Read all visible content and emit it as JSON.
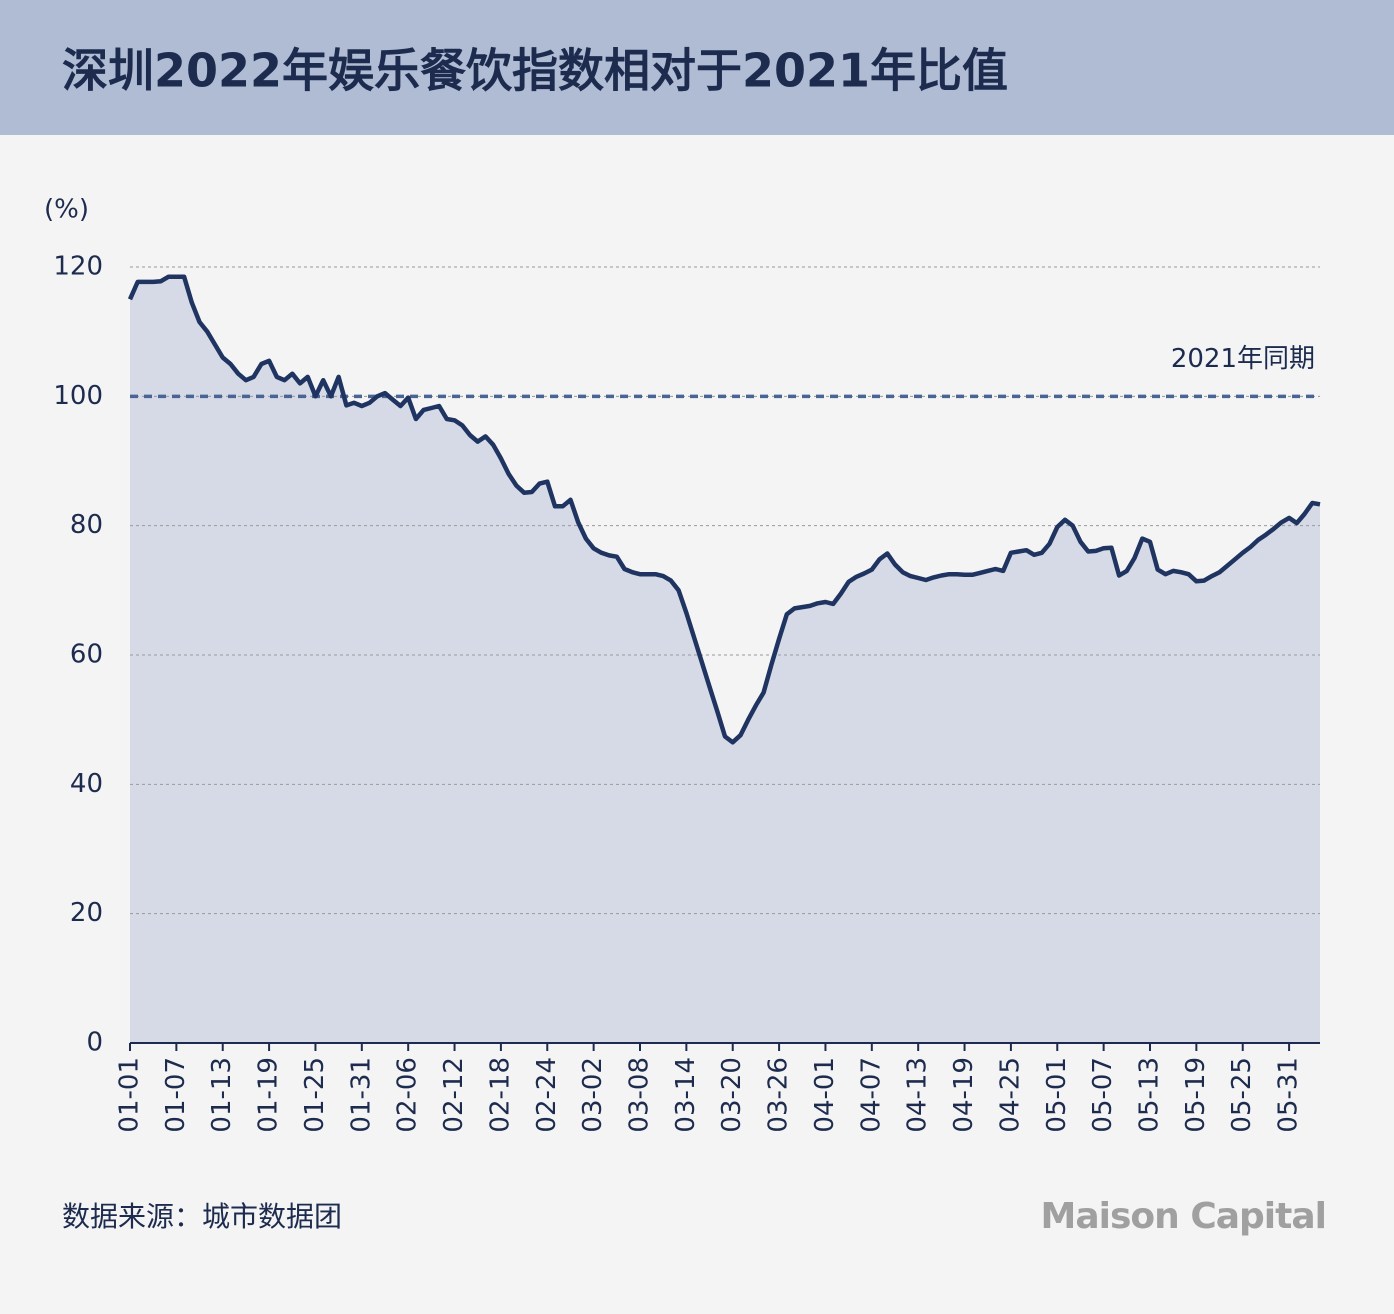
{
  "chart_data": {
    "type": "area_line",
    "title": "深圳2022年娱乐餐饮指数相对于2021年比值",
    "y_label": "(%)",
    "source": "数据来源：城市数据团",
    "logo": "Maison Capital",
    "reference_line": {
      "value": 100,
      "label": "2021年同期"
    },
    "color": "#1f3461",
    "fill": "#d5dae6",
    "ylim": [
      0,
      120
    ],
    "yticks": [
      0,
      20,
      40,
      60,
      80,
      100,
      120
    ],
    "grid": true,
    "categories": [
      "01-01",
      null,
      null,
      null,
      null,
      null,
      "01-07",
      null,
      null,
      null,
      null,
      null,
      "01-13",
      null,
      null,
      null,
      null,
      null,
      "01-19",
      null,
      null,
      null,
      null,
      null,
      "01-25",
      null,
      null,
      null,
      null,
      null,
      "01-31",
      null,
      null,
      null,
      null,
      null,
      "02-06",
      null,
      null,
      null,
      null,
      null,
      "02-12",
      null,
      null,
      null,
      null,
      null,
      "02-18",
      null,
      null,
      null,
      null,
      null,
      "02-24",
      null,
      null,
      null,
      null,
      null,
      "03-02",
      null,
      null,
      null,
      null,
      null,
      "03-08",
      null,
      null,
      null,
      null,
      null,
      "03-14",
      null,
      null,
      null,
      null,
      null,
      "03-20",
      null,
      null,
      null,
      null,
      null,
      "03-26",
      null,
      null,
      null,
      null,
      null,
      "04-01",
      null,
      null,
      null,
      null,
      null,
      "04-07",
      null,
      null,
      null,
      null,
      null,
      "04-13",
      null,
      null,
      null,
      null,
      null,
      "04-19",
      null,
      null,
      null,
      null,
      null,
      "04-25",
      null,
      null,
      null,
      null,
      null,
      "05-01",
      null,
      null,
      null,
      null,
      null,
      "05-07",
      null,
      null,
      null,
      null,
      null,
      "05-13",
      null,
      null,
      null,
      null,
      null,
      "05-19",
      null,
      null,
      null,
      null,
      null,
      "05-25",
      null,
      null,
      null,
      null,
      null,
      "05-31",
      null,
      null,
      null,
      null
    ],
    "values": [
      115,
      117.7,
      117.7,
      117.7,
      117.8,
      118.5,
      118.5,
      118.5,
      114.5,
      111.5,
      110,
      108,
      106,
      105,
      103.5,
      102.5,
      103,
      105,
      105.5,
      103,
      102.5,
      103.5,
      102,
      103,
      100,
      102.5,
      100,
      103,
      98.6,
      99,
      98.5,
      99,
      100,
      100.5,
      99.5,
      98.5,
      99.8,
      96.5,
      97.9,
      98.2,
      98.5,
      96.5,
      96.3,
      95.5,
      94,
      93,
      93.8,
      92.5,
      90.4,
      88,
      86.2,
      85.1,
      85.2,
      86.5,
      86.8,
      83,
      83,
      84,
      80.5,
      78,
      76.5,
      75.8,
      75.4,
      75.2,
      73.3,
      72.8,
      72.5,
      72.5,
      72.5,
      72.2,
      71.5,
      70,
      66.5,
      62.7,
      58.9,
      55.1,
      51.3,
      47.4,
      46.5,
      47.6,
      50,
      52.2,
      54.2,
      58.5,
      62.5,
      66.3,
      67.2,
      67.4,
      67.6,
      68,
      68.2,
      67.9,
      69.5,
      71.3,
      72.1,
      72.6,
      73.2,
      74.8,
      75.7,
      74,
      72.8,
      72.2,
      71.9,
      71.6,
      72,
      72.3,
      72.5,
      72.5,
      72.4,
      72.4,
      72.7,
      73,
      73.3,
      73,
      75.8,
      76,
      76.2,
      75.5,
      75.8,
      77.2,
      79.8,
      80.9,
      80,
      77.5,
      76,
      76.1,
      76.5,
      76.6,
      72.3,
      73,
      75,
      78,
      77.5,
      73.2,
      72.5,
      73,
      72.8,
      72.5,
      71.4,
      71.5,
      72.2,
      72.8,
      73.8,
      74.8,
      75.8,
      76.7,
      77.8,
      78.6,
      79.5,
      80.5,
      81.2,
      80.4,
      81.8,
      83.5,
      83.3
    ]
  }
}
